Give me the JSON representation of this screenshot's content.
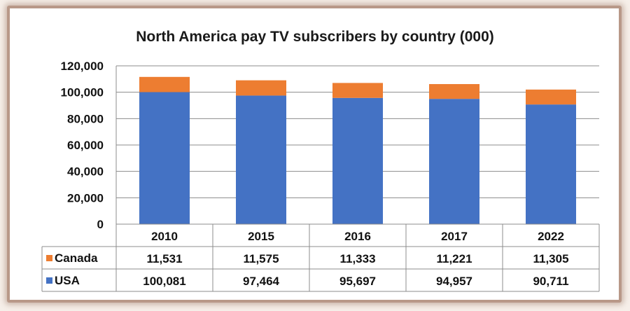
{
  "chart_data": {
    "type": "bar",
    "stacked": true,
    "title": "North America pay TV subscribers by country (000)",
    "categories": [
      "2010",
      "2015",
      "2016",
      "2017",
      "2022"
    ],
    "series": [
      {
        "name": "USA",
        "values": [
          100081,
          97464,
          95697,
          94957,
          90711
        ],
        "color": "#4472c4"
      },
      {
        "name": "Canada",
        "values": [
          11531,
          11575,
          11333,
          11221,
          11305
        ],
        "color": "#ed7d31"
      }
    ],
    "ylim": [
      0,
      120000
    ],
    "yticks": [
      "0",
      "20,000",
      "40,000",
      "60,000",
      "80,000",
      "100,000",
      "120,000"
    ],
    "grid": true,
    "data_table": {
      "rows": [
        {
          "label": "Canada",
          "values": [
            "11,531",
            "11,575",
            "11,333",
            "11,221",
            "11,305"
          ]
        },
        {
          "label": "USA",
          "values": [
            "100,081",
            "97,464",
            "95,697",
            "94,957",
            "90,711"
          ]
        }
      ]
    }
  }
}
